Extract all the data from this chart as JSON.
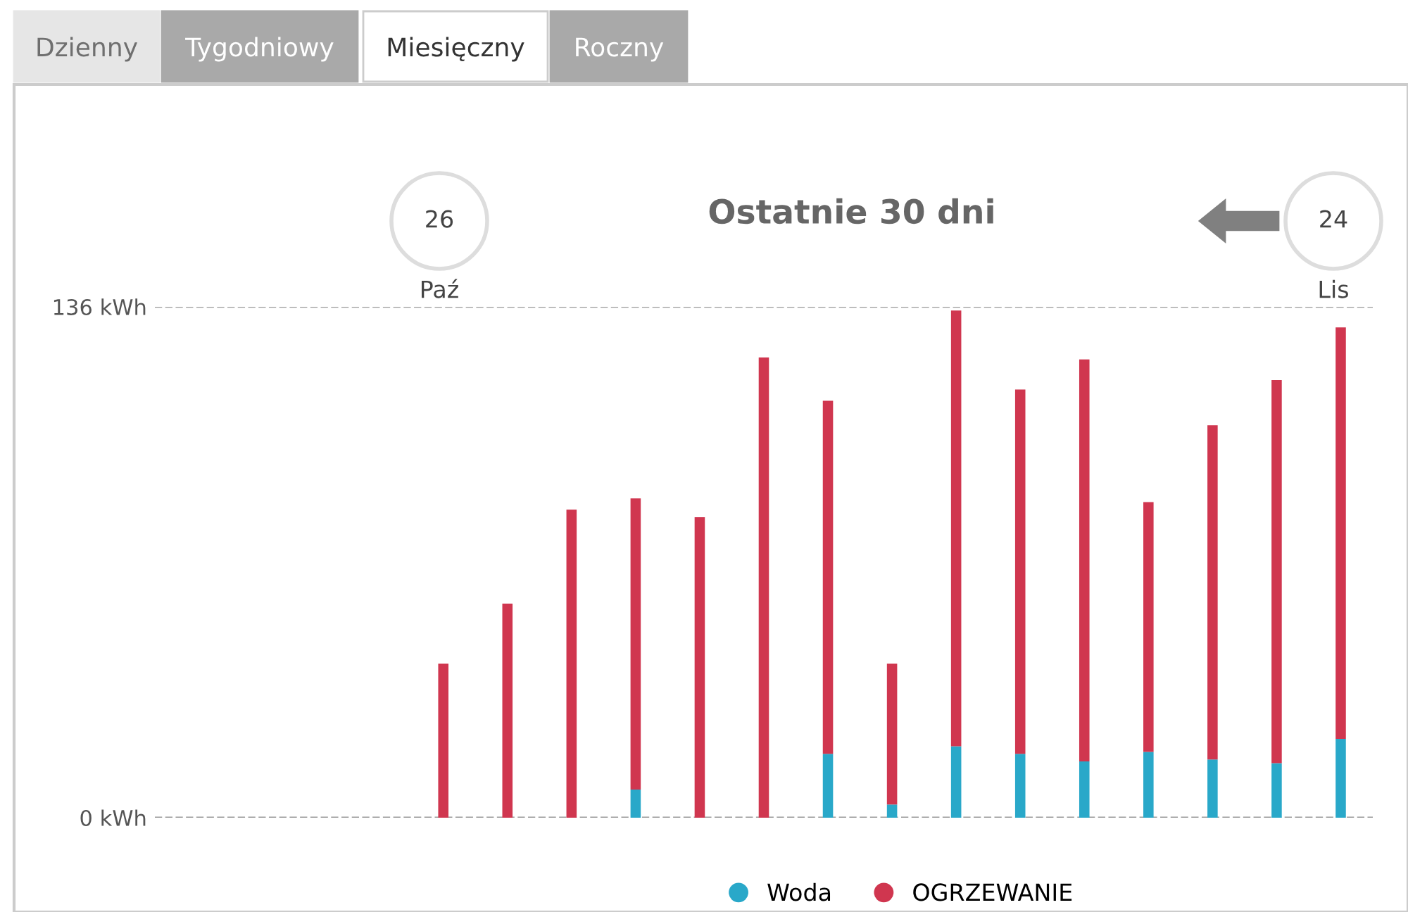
{
  "chart_data": {
    "type": "bar",
    "title": "Ostatnie 30 dni",
    "categories": [
      null,
      null,
      null,
      null,
      null,
      null,
      null,
      null,
      null,
      null,
      null,
      null,
      null,
      null,
      null,
      null,
      null,
      null,
      null
    ],
    "stacked": true,
    "series": [
      {
        "name": "Woda",
        "color": "#29a8c9",
        "values": [
          null,
          null,
          null,
          null,
          0,
          0,
          0,
          7.5,
          0,
          0,
          17,
          3.5,
          19,
          17,
          15,
          17.5,
          15.5,
          14.5,
          21
        ]
      },
      {
        "name": "OGRZEWANIE",
        "color": "#d0364f",
        "values": [
          null,
          null,
          null,
          null,
          41,
          57,
          82,
          77.5,
          80,
          122.5,
          94,
          37.5,
          116,
          97,
          107,
          66.5,
          89,
          102,
          109.5
        ]
      }
    ],
    "ylim": [
      0,
      136
    ],
    "yticks": [
      {
        "value": 0,
        "label": "0 kWh"
      },
      {
        "value": 136,
        "label": "136 kWh"
      }
    ],
    "grid": "y",
    "line_style": "dashed",
    "legend": "bottom",
    "annotations": [
      "Dzienny",
      "Tygodniowy",
      "Miesięczny",
      "Roczny",
      "26",
      "Paź",
      "24",
      "Lis"
    ]
  }
}
